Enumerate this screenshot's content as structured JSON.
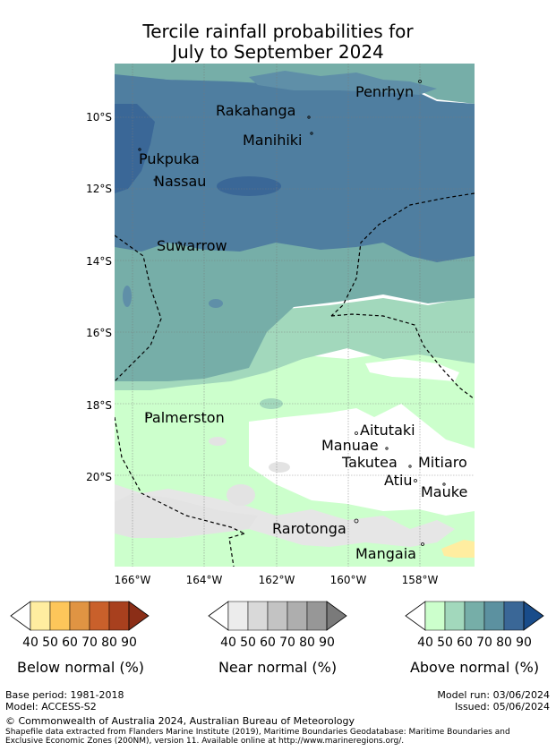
{
  "title_line1": "Tercile rainfall probabilities for",
  "title_line2": "July to September 2024",
  "lat_labels": [
    "10°S",
    "12°S",
    "14°S",
    "16°S",
    "18°S",
    "20°S"
  ],
  "lon_labels": [
    "166°W",
    "164°W",
    "162°W",
    "160°W",
    "158°W"
  ],
  "places": {
    "penrhyn": "Penrhyn",
    "rakahanga": "Rakahanga",
    "manihiki": "Manihiki",
    "pukpuka": "Pukpuka",
    "nassau": "Nassau",
    "suwarrow": "Suwarrow",
    "palmerston": "Palmerston",
    "aitutaki": "Aitutaki",
    "manuae": "Manuae",
    "takutea": "Takutea",
    "mitiaro": "Mitiaro",
    "atiu": "Atiu",
    "mauke": "Mauke",
    "rarotonga": "Rarotonga",
    "mangaia": "Mangaia"
  },
  "legend": {
    "below": {
      "title": "Below normal (%)",
      "ticks": [
        "40",
        "50",
        "60",
        "70",
        "80",
        "90"
      ],
      "colors": [
        "#ffffff",
        "#ffeda0",
        "#fdc65a",
        "#e09443",
        "#c9602b",
        "#a8401e",
        "#8b2e17"
      ]
    },
    "near": {
      "title": "Near normal (%)",
      "ticks": [
        "40",
        "50",
        "60",
        "70",
        "80",
        "90"
      ],
      "colors": [
        "#ffffff",
        "#ececec",
        "#d9d9d9",
        "#c3c3c3",
        "#aeaeae",
        "#979797",
        "#7a7a7a"
      ]
    },
    "above": {
      "title": "Above normal (%)",
      "ticks": [
        "40",
        "50",
        "60",
        "70",
        "80",
        "90"
      ],
      "colors": [
        "#ffffff",
        "#ccffcc",
        "#a2d8bc",
        "#76aea8",
        "#5c91a0",
        "#3a6797",
        "#194c8a"
      ]
    }
  },
  "footer": {
    "base_period": "Base period: 1981-2018",
    "model": "Model: ACCESS-S2",
    "model_run": "Model run: 03/06/2024",
    "issued": "Issued: 05/06/2024",
    "copyright": "© Commonwealth of Australia 2024, Australian Bureau of Meteorology",
    "source_line1": "Shapefile data extracted from Flanders Marine Institute (2019), Maritime Boundaries Geodatabase: Maritime Boundaries and",
    "source_line2": "Exclusive Economic Zones (200NM), version 11. Available online at http://www.marineregions.org/."
  }
}
